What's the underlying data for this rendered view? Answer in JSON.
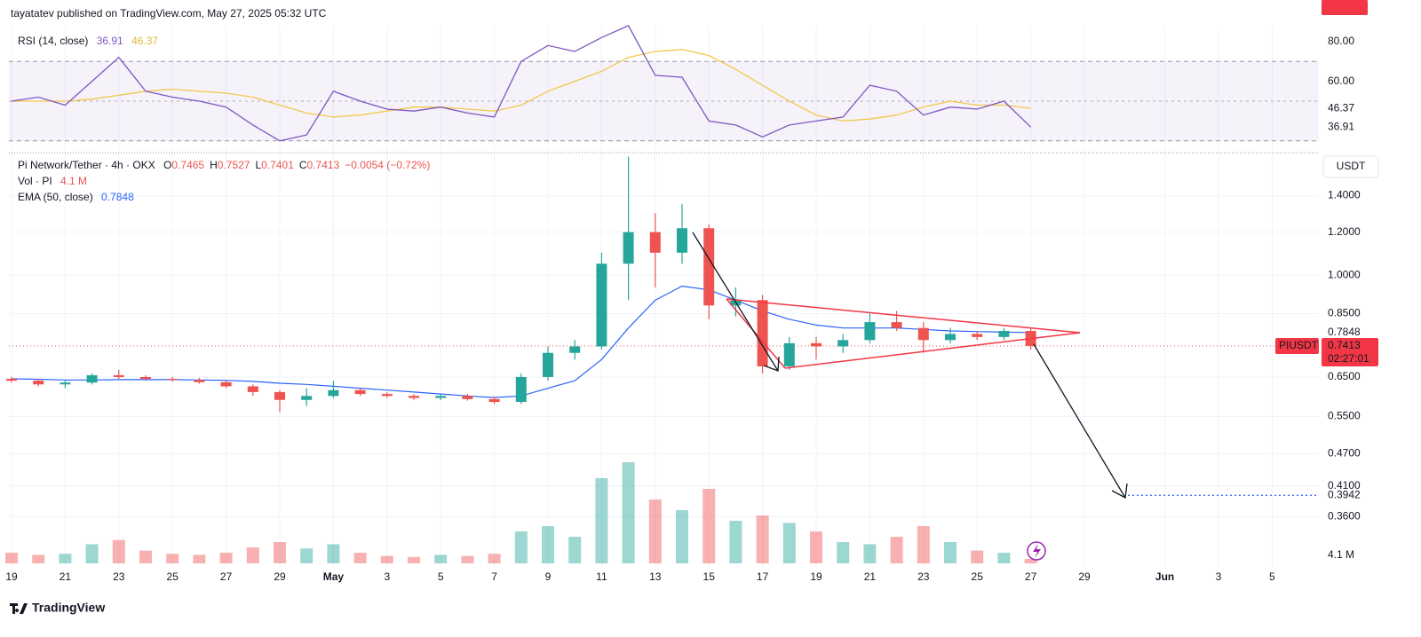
{
  "published": "tayatatev published on TradingView.com, May 27, 2025 05:32 UTC",
  "footer": "TradingView",
  "chart_data": {
    "type": "candlestick",
    "title": "Pi Network/Tether · 4h · OKX",
    "ohlc_header": [
      {
        "name": "O",
        "value": 0.7465
      },
      {
        "name": "H",
        "value": 0.7527
      },
      {
        "name": "L",
        "value": 0.7401
      },
      {
        "name": "C",
        "value": 0.7413
      }
    ],
    "change": "−0.0054 (−0.72%)",
    "currency": "USDT",
    "symbol": "PIUSDT",
    "last": 0.7413,
    "countdown": "02:27:01",
    "target": 0.3942,
    "log": true,
    "up_color": "#26a69a",
    "down_color": "#ef5350",
    "categories": [
      "19",
      null,
      "21",
      null,
      "23",
      null,
      "25",
      null,
      "27",
      null,
      "29",
      null,
      "May",
      null,
      "3",
      null,
      "5",
      null,
      "7",
      null,
      "9",
      null,
      "11",
      null,
      "13",
      null,
      "15",
      null,
      "17",
      null,
      "19",
      null,
      "21",
      null,
      "23",
      null,
      "25",
      null,
      "27",
      null,
      "29",
      null,
      null,
      "Jun",
      null,
      "3",
      null,
      "5"
    ],
    "open": [
      0.645,
      0.64,
      0.63,
      0.635,
      0.655,
      0.65,
      0.645,
      0.642,
      0.636,
      0.625,
      0.61,
      0.59,
      0.6,
      0.615,
      0.605,
      0.6,
      0.595,
      0.6,
      0.592,
      0.585,
      0.65,
      0.72,
      0.74,
      1.05,
      1.2,
      1.1,
      1.22,
      0.88,
      0.9,
      0.68,
      0.75,
      0.74,
      0.76,
      0.82,
      0.8,
      0.76,
      0.78,
      0.77,
      0.79,
      null,
      null,
      null,
      null,
      null,
      null,
      null,
      null,
      null
    ],
    "high": [
      0.65,
      0.645,
      0.64,
      0.66,
      0.67,
      0.655,
      0.65,
      0.648,
      0.64,
      0.63,
      0.615,
      0.62,
      0.64,
      0.62,
      0.61,
      0.605,
      0.605,
      0.605,
      0.598,
      0.66,
      0.74,
      0.76,
      1.1,
      1.65,
      1.3,
      1.35,
      1.24,
      0.95,
      0.92,
      0.77,
      0.77,
      0.78,
      0.85,
      0.86,
      0.82,
      0.8,
      0.79,
      0.8,
      0.8,
      null,
      null,
      null,
      null,
      null,
      null,
      null,
      null,
      null
    ],
    "low": [
      0.635,
      0.625,
      0.62,
      0.63,
      0.645,
      0.64,
      0.638,
      0.632,
      0.62,
      0.6,
      0.56,
      0.575,
      0.595,
      0.6,
      0.595,
      0.59,
      0.59,
      0.588,
      0.58,
      0.58,
      0.64,
      0.7,
      0.73,
      0.9,
      0.95,
      1.05,
      0.83,
      0.84,
      0.66,
      0.67,
      0.7,
      0.72,
      0.75,
      0.79,
      0.72,
      0.75,
      0.76,
      0.76,
      0.73,
      null,
      null,
      null,
      null,
      null,
      null,
      null,
      null,
      null
    ],
    "close": [
      0.64,
      0.63,
      0.635,
      0.655,
      0.65,
      0.645,
      0.642,
      0.636,
      0.625,
      0.61,
      0.59,
      0.6,
      0.615,
      0.605,
      0.6,
      0.595,
      0.6,
      0.592,
      0.585,
      0.65,
      0.72,
      0.74,
      1.05,
      1.2,
      1.1,
      1.22,
      0.88,
      0.9,
      0.68,
      0.75,
      0.74,
      0.76,
      0.82,
      0.8,
      0.76,
      0.78,
      0.77,
      0.79,
      0.7413,
      null,
      null,
      null,
      null,
      null,
      null,
      null,
      null,
      null
    ],
    "ylim": [
      0.29,
      1.68
    ],
    "yticks": [
      {
        "value": 1.4,
        "label": "1.4000"
      },
      {
        "value": 1.2,
        "label": "1.2000"
      },
      {
        "value": 1.0,
        "label": "1.0000"
      },
      {
        "value": 0.85,
        "label": "0.8500"
      },
      {
        "value": 0.65,
        "label": "0.6500"
      },
      {
        "value": 0.55,
        "label": "0.5500"
      },
      {
        "value": 0.47,
        "label": "0.4700"
      },
      {
        "value": 0.41,
        "label": "0.4100"
      },
      {
        "value": 0.36,
        "label": "0.3600"
      }
    ],
    "ema": {
      "name": "EMA (50, close)",
      "color": "#2962ff",
      "last": 0.7848,
      "values": [
        0.645,
        0.644,
        0.642,
        0.642,
        0.643,
        0.643,
        0.643,
        0.642,
        0.641,
        0.638,
        0.633,
        0.63,
        0.625,
        0.62,
        0.615,
        0.61,
        0.605,
        0.6,
        0.596,
        0.6,
        0.62,
        0.64,
        0.7,
        0.8,
        0.9,
        0.955,
        0.94,
        0.9,
        0.86,
        0.83,
        0.81,
        0.8,
        0.8,
        0.8,
        0.795,
        0.79,
        0.788,
        0.786,
        0.7848,
        null,
        null,
        null,
        null,
        null,
        null,
        null,
        null,
        null
      ]
    },
    "volume": {
      "name": "Vol · PI",
      "last": {
        "value": 4.1,
        "label": "4.1 M"
      },
      "values": [
        10,
        8,
        9,
        18,
        22,
        12,
        9,
        8,
        10,
        15,
        20,
        14,
        18,
        10,
        7,
        6,
        8,
        7,
        9,
        30,
        35,
        25,
        80,
        95,
        60,
        50,
        70,
        40,
        45,
        38,
        30,
        20,
        18,
        25,
        35,
        20,
        12,
        10,
        4.1,
        null,
        null,
        null,
        null,
        null,
        null,
        null,
        null,
        null
      ]
    },
    "rsi": {
      "name": "RSI (14, close)",
      "color": "#7e57c2",
      "last": 36.91,
      "values": [
        50,
        52,
        48,
        60,
        72,
        55,
        52,
        50,
        47,
        38,
        30,
        33,
        55,
        50,
        46,
        45,
        47,
        44,
        42,
        70,
        78,
        75,
        82,
        88,
        63,
        62,
        40,
        38,
        32,
        38,
        40,
        42,
        58,
        55,
        43,
        47,
        46,
        50,
        36.91,
        null,
        null,
        null,
        null,
        null,
        null,
        null,
        null,
        null
      ],
      "ma": {
        "color": "#f2c84b",
        "last": 46.37,
        "values": [
          50,
          50,
          50,
          51,
          53,
          55,
          56,
          55,
          54,
          52,
          48,
          44,
          42,
          43,
          45,
          47,
          47,
          46,
          45,
          48,
          55,
          60,
          65,
          72,
          75,
          76,
          73,
          66,
          58,
          50,
          43,
          40,
          41,
          43,
          47,
          50,
          48,
          48,
          46.37,
          null,
          null,
          null,
          null,
          null,
          null,
          null,
          null,
          null
        ]
      },
      "ylim": [
        25,
        87.5
      ],
      "yticks": [
        {
          "value": 80,
          "label": "80.00"
        },
        {
          "value": 60,
          "label": "60.00"
        }
      ],
      "bands": [
        70,
        50,
        30
      ]
    }
  }
}
